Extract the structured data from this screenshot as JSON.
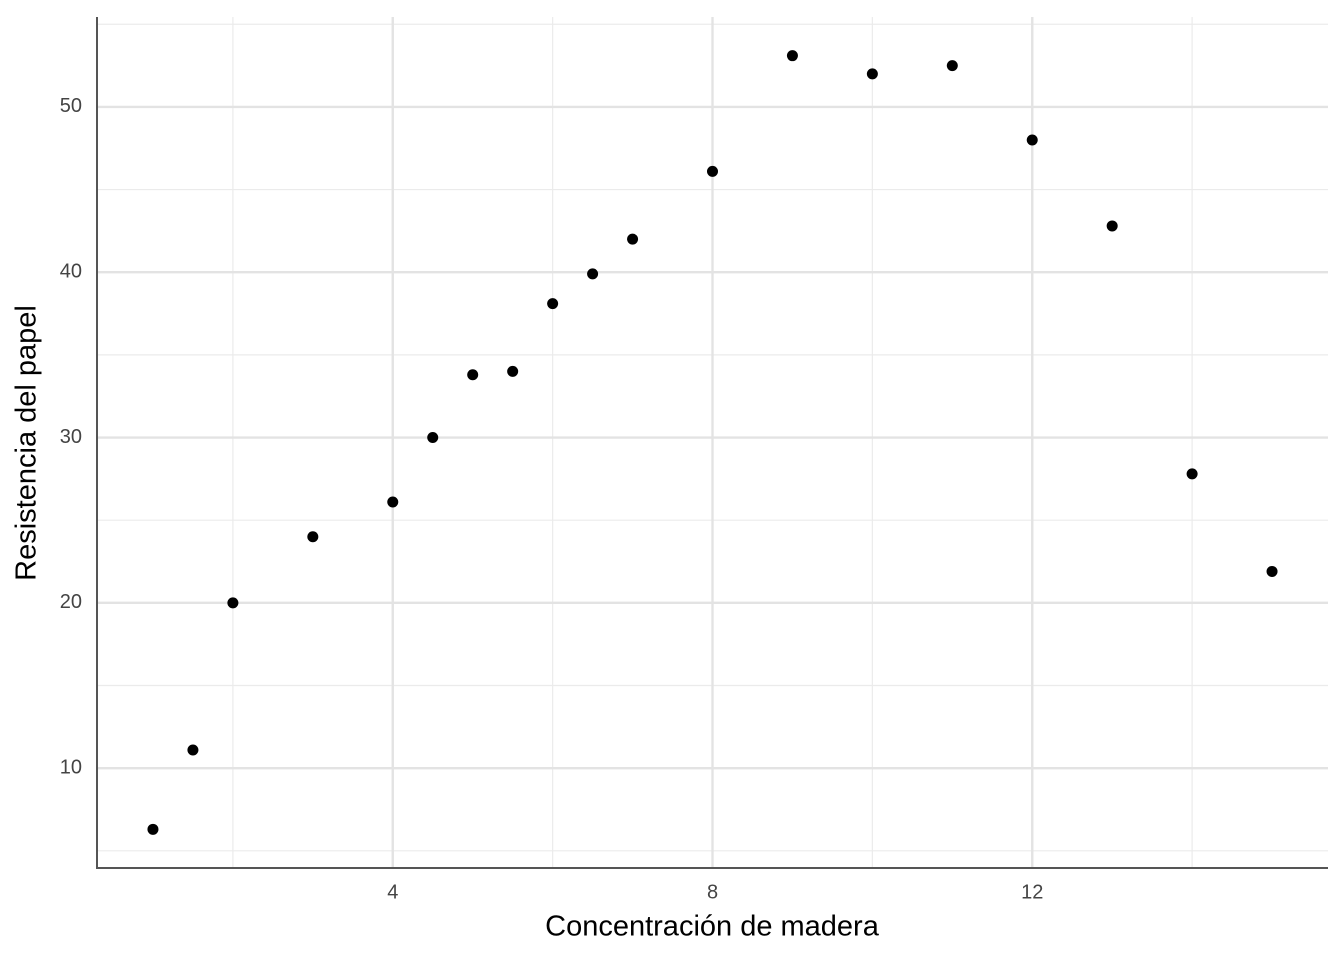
{
  "chart_data": {
    "type": "scatter",
    "x_label": "Concentración de madera",
    "y_label": "Resistencia del papel",
    "x": [
      1,
      1.5,
      2,
      3,
      4,
      4.5,
      5,
      5.5,
      6,
      6.5,
      7,
      8,
      9,
      10,
      11,
      12,
      13,
      14,
      15
    ],
    "values": [
      6.3,
      11.1,
      20,
      24,
      26.1,
      30,
      33.8,
      34,
      38.1,
      39.9,
      42,
      46.1,
      53.1,
      52,
      52.5,
      48,
      42.8,
      27.8,
      21.9
    ],
    "color": "#000000",
    "xlim": [
      0.3,
      15.7
    ],
    "xticks": [
      4,
      8,
      12
    ],
    "ylim": [
      3.96,
      55.44
    ],
    "yticks": [
      10,
      20,
      30,
      40,
      50
    ],
    "grid": true
  }
}
